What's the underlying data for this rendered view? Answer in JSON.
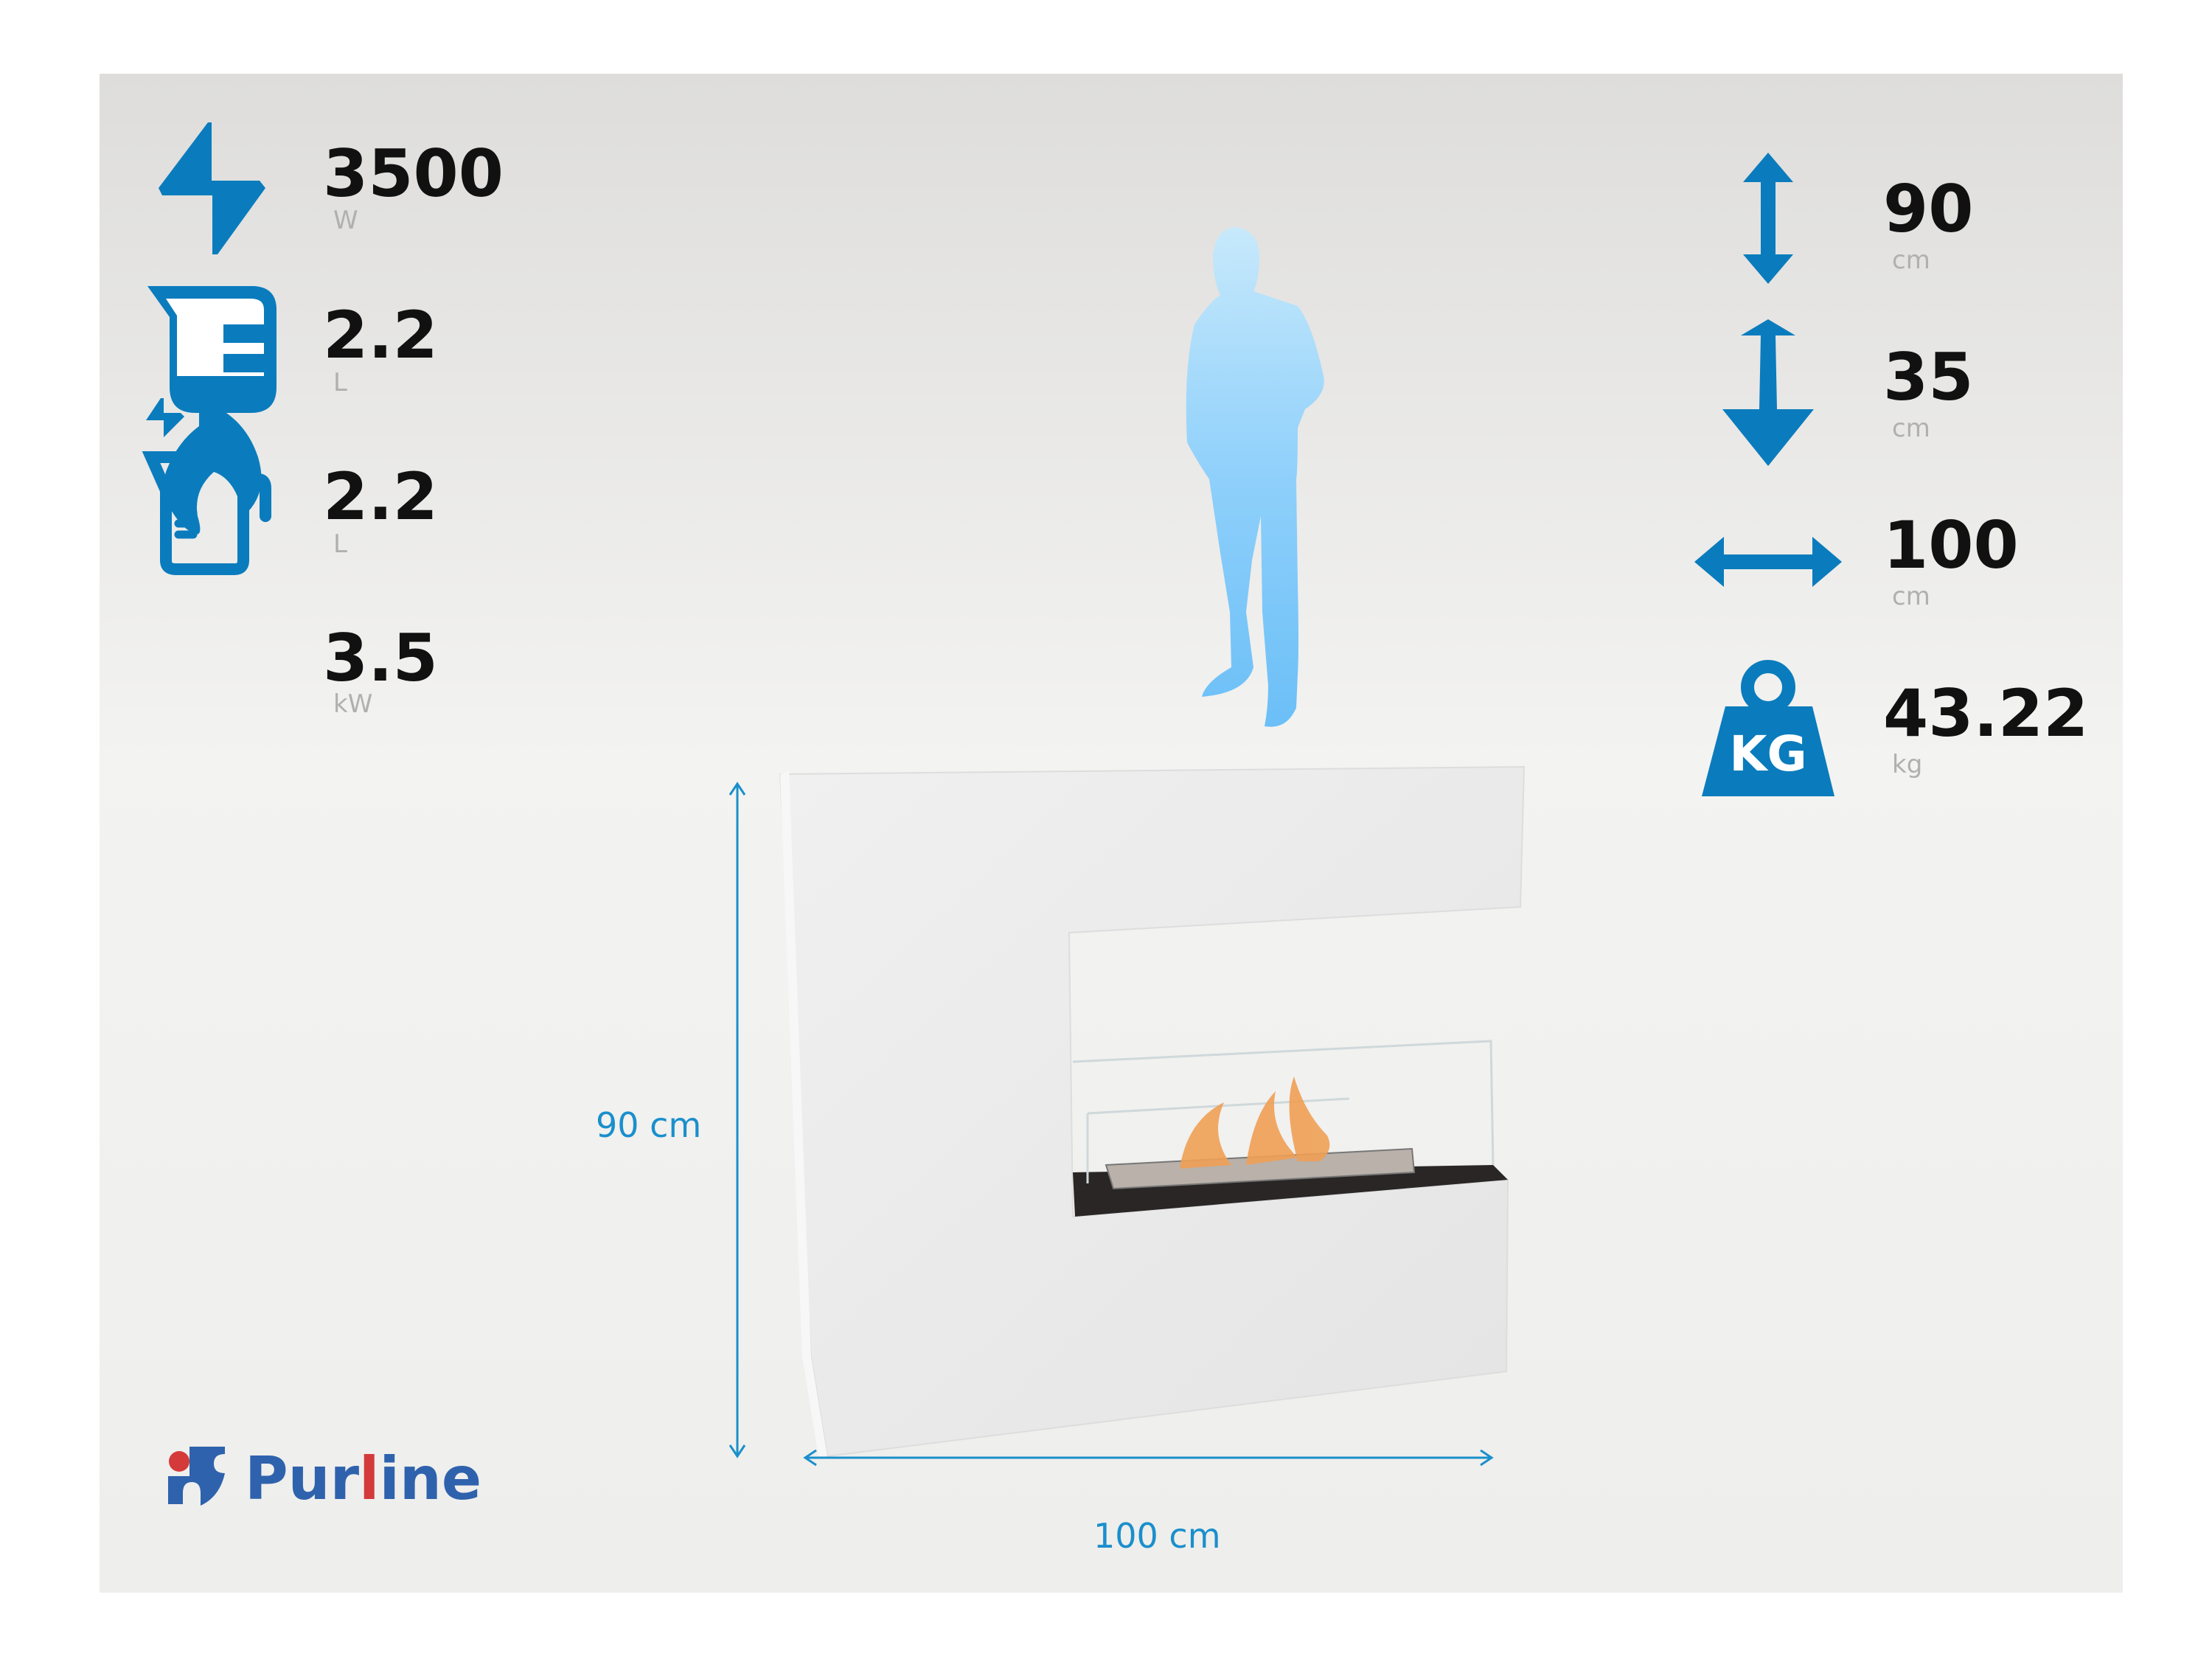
{
  "colors": {
    "accent": "#0a7cbd",
    "silhouette": "#8fd0fb",
    "dimension": "#1a8fcc",
    "logo_blue": "#2f62ad",
    "logo_red": "#d43a3a"
  },
  "specs_left": [
    {
      "icon": "lightning-bolt-icon",
      "value": "3500",
      "unit": "W"
    },
    {
      "icon": "tank-capacity-icon",
      "value": "2.2",
      "unit": "L"
    },
    {
      "icon": "measuring-jug-icon",
      "value": "2.2",
      "unit": "L"
    },
    {
      "icon": "flame-power-icon",
      "value": "3.5",
      "unit": "kW"
    }
  ],
  "specs_right": [
    {
      "icon": "height-arrow-icon",
      "value": "90",
      "unit": "cm"
    },
    {
      "icon": "depth-arrow-icon",
      "value": "35",
      "unit": "cm"
    },
    {
      "icon": "width-arrow-icon",
      "value": "100",
      "unit": "cm"
    },
    {
      "icon": "weight-kg-icon",
      "value": "43.22",
      "unit": "kg",
      "icon_text": "KG"
    }
  ],
  "dimensions": {
    "height": "90 cm",
    "width": "100 cm"
  },
  "logo": {
    "pre": "Pur",
    "l": "l",
    "post": "ine"
  }
}
